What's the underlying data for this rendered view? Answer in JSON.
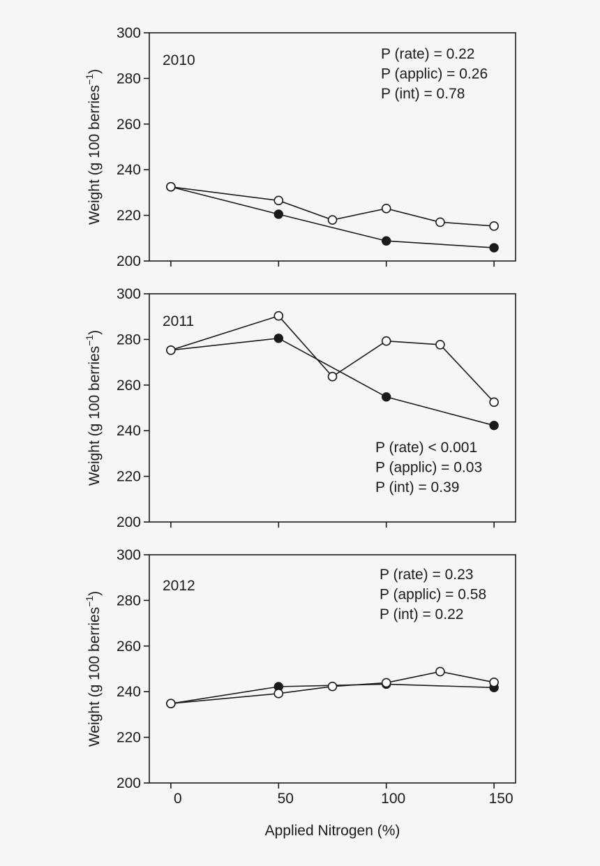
{
  "chart_data": [
    {
      "type": "line",
      "annotation_year": "2010",
      "stats": [
        "P (rate) = 0.22",
        "P (applic) = 0.26",
        "P (int) = 0.78"
      ],
      "stats_position": "top-right",
      "ylabel": "Weight (g 100 berries",
      "ylabel_sup": "−1",
      "ylabel_close": ")",
      "xlabel": "",
      "xlim": [
        -10,
        160
      ],
      "ylim": [
        200,
        300
      ],
      "yticks": [
        200,
        220,
        240,
        260,
        280,
        300
      ],
      "xticks": [
        0,
        50,
        100,
        150
      ],
      "xticklabels": [],
      "series": [
        {
          "marker": "filled",
          "x": [
            0,
            50,
            100,
            150
          ],
          "y": [
            232.5,
            220.5,
            208.8,
            205.8
          ]
        },
        {
          "marker": "open",
          "x": [
            0,
            50,
            75,
            100,
            125,
            150
          ],
          "y": [
            232.5,
            226.5,
            218,
            223,
            217,
            215.3
          ]
        }
      ]
    },
    {
      "type": "line",
      "annotation_year": "2011",
      "stats": [
        "P (rate) < 0.001",
        "P (applic) = 0.03",
        "P (int) = 0.39"
      ],
      "stats_position": "bottom-right",
      "ylabel": "Weight (g 100 berries",
      "ylabel_sup": "−1",
      "ylabel_close": ")",
      "xlabel": "",
      "xlim": [
        -10,
        160
      ],
      "ylim": [
        200,
        300
      ],
      "yticks": [
        200,
        220,
        240,
        260,
        280,
        300
      ],
      "xticks": [
        0,
        50,
        100,
        150
      ],
      "xticklabels": [],
      "series": [
        {
          "marker": "filled",
          "x": [
            0,
            50,
            100,
            150
          ],
          "y": [
            275.3,
            280.5,
            254.8,
            242.3
          ]
        },
        {
          "marker": "open",
          "x": [
            0,
            50,
            75,
            100,
            125,
            150
          ],
          "y": [
            275.3,
            290.3,
            263.7,
            279.3,
            277.7,
            252.5
          ]
        }
      ]
    },
    {
      "type": "line",
      "annotation_year": "2012",
      "stats": [
        "P (rate) = 0.23",
        "P (applic) = 0.58",
        "P (int) = 0.22"
      ],
      "stats_position": "top-right",
      "ylabel": "Weight (g 100 berries",
      "ylabel_sup": "−1",
      "ylabel_close": ")",
      "xlabel": "Applied Nitrogen (%)",
      "xlim": [
        -10,
        160
      ],
      "ylim": [
        200,
        300
      ],
      "yticks": [
        200,
        220,
        240,
        260,
        280,
        300
      ],
      "xticks": [
        0,
        50,
        100,
        150
      ],
      "xticklabels": [
        "0",
        "50",
        "100",
        "150"
      ],
      "series": [
        {
          "marker": "filled",
          "x": [
            0,
            50,
            100,
            150
          ],
          "y": [
            234.8,
            242.2,
            243.3,
            241.8
          ]
        },
        {
          "marker": "open",
          "x": [
            0,
            50,
            75,
            100,
            125,
            150
          ],
          "y": [
            234.8,
            239.2,
            242.3,
            243.9,
            248.8,
            244.1
          ]
        }
      ]
    }
  ]
}
